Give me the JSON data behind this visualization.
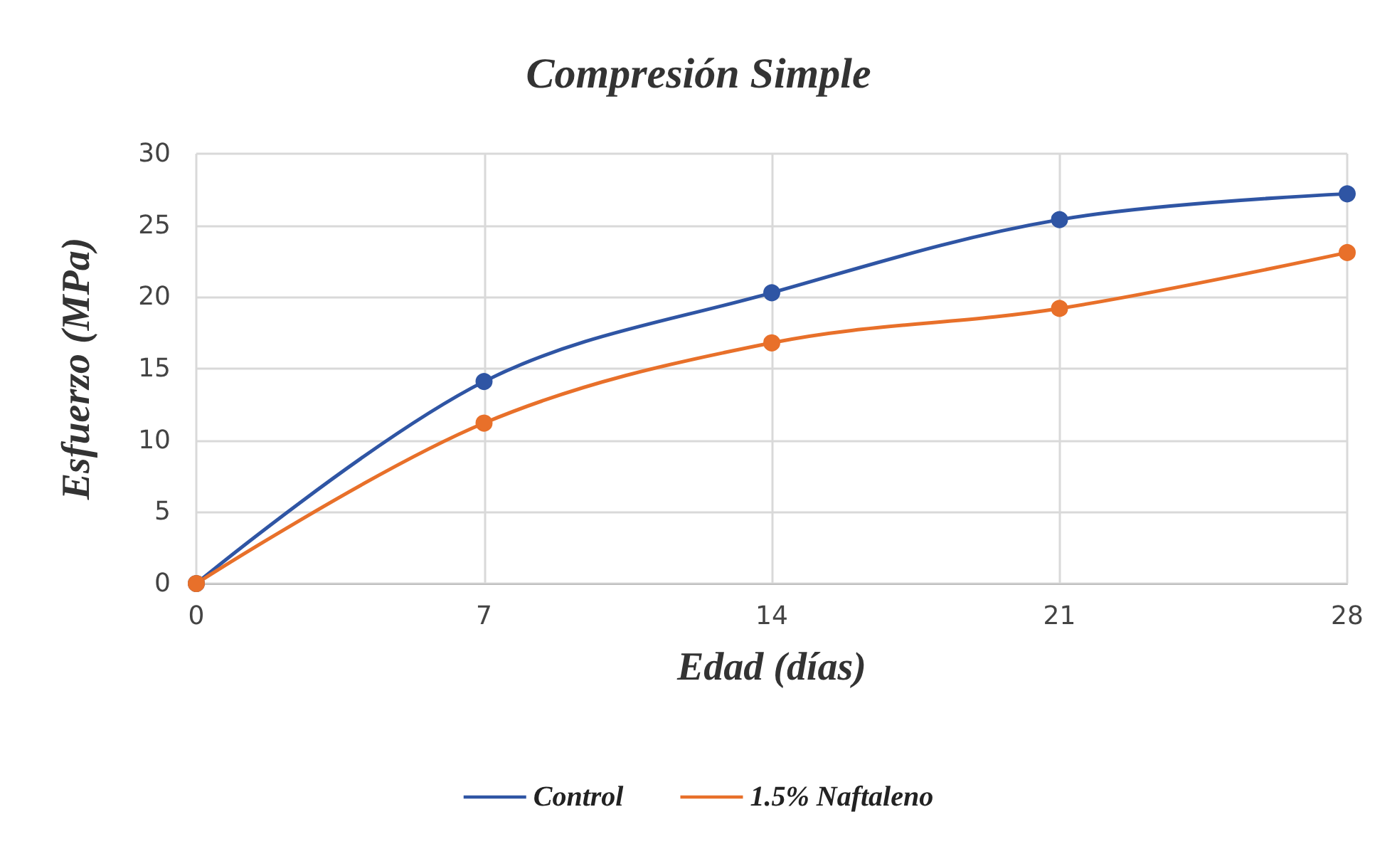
{
  "chart_data": {
    "type": "line",
    "title": "Compresión Simple",
    "xlabel": "Edad (días)",
    "ylabel": "Esfuerzo (MPa)",
    "x": [
      0,
      7,
      14,
      21,
      28
    ],
    "series": [
      {
        "name": "Control",
        "color": "#2f55a4",
        "values": [
          0,
          14.1,
          20.3,
          25.4,
          27.2
        ]
      },
      {
        "name": "1.5% Naftaleno",
        "color": "#e8702a",
        "values": [
          0,
          11.2,
          16.8,
          19.2,
          23.1
        ]
      }
    ],
    "xlim": [
      0,
      28
    ],
    "xticks": [
      0,
      7,
      14,
      21,
      28
    ],
    "ylim": [
      0,
      30
    ],
    "yticks": [
      0,
      5,
      10,
      15,
      20,
      25,
      30
    ],
    "grid": true,
    "legend": "bottom",
    "marker": "circle",
    "line_style": "solid"
  }
}
